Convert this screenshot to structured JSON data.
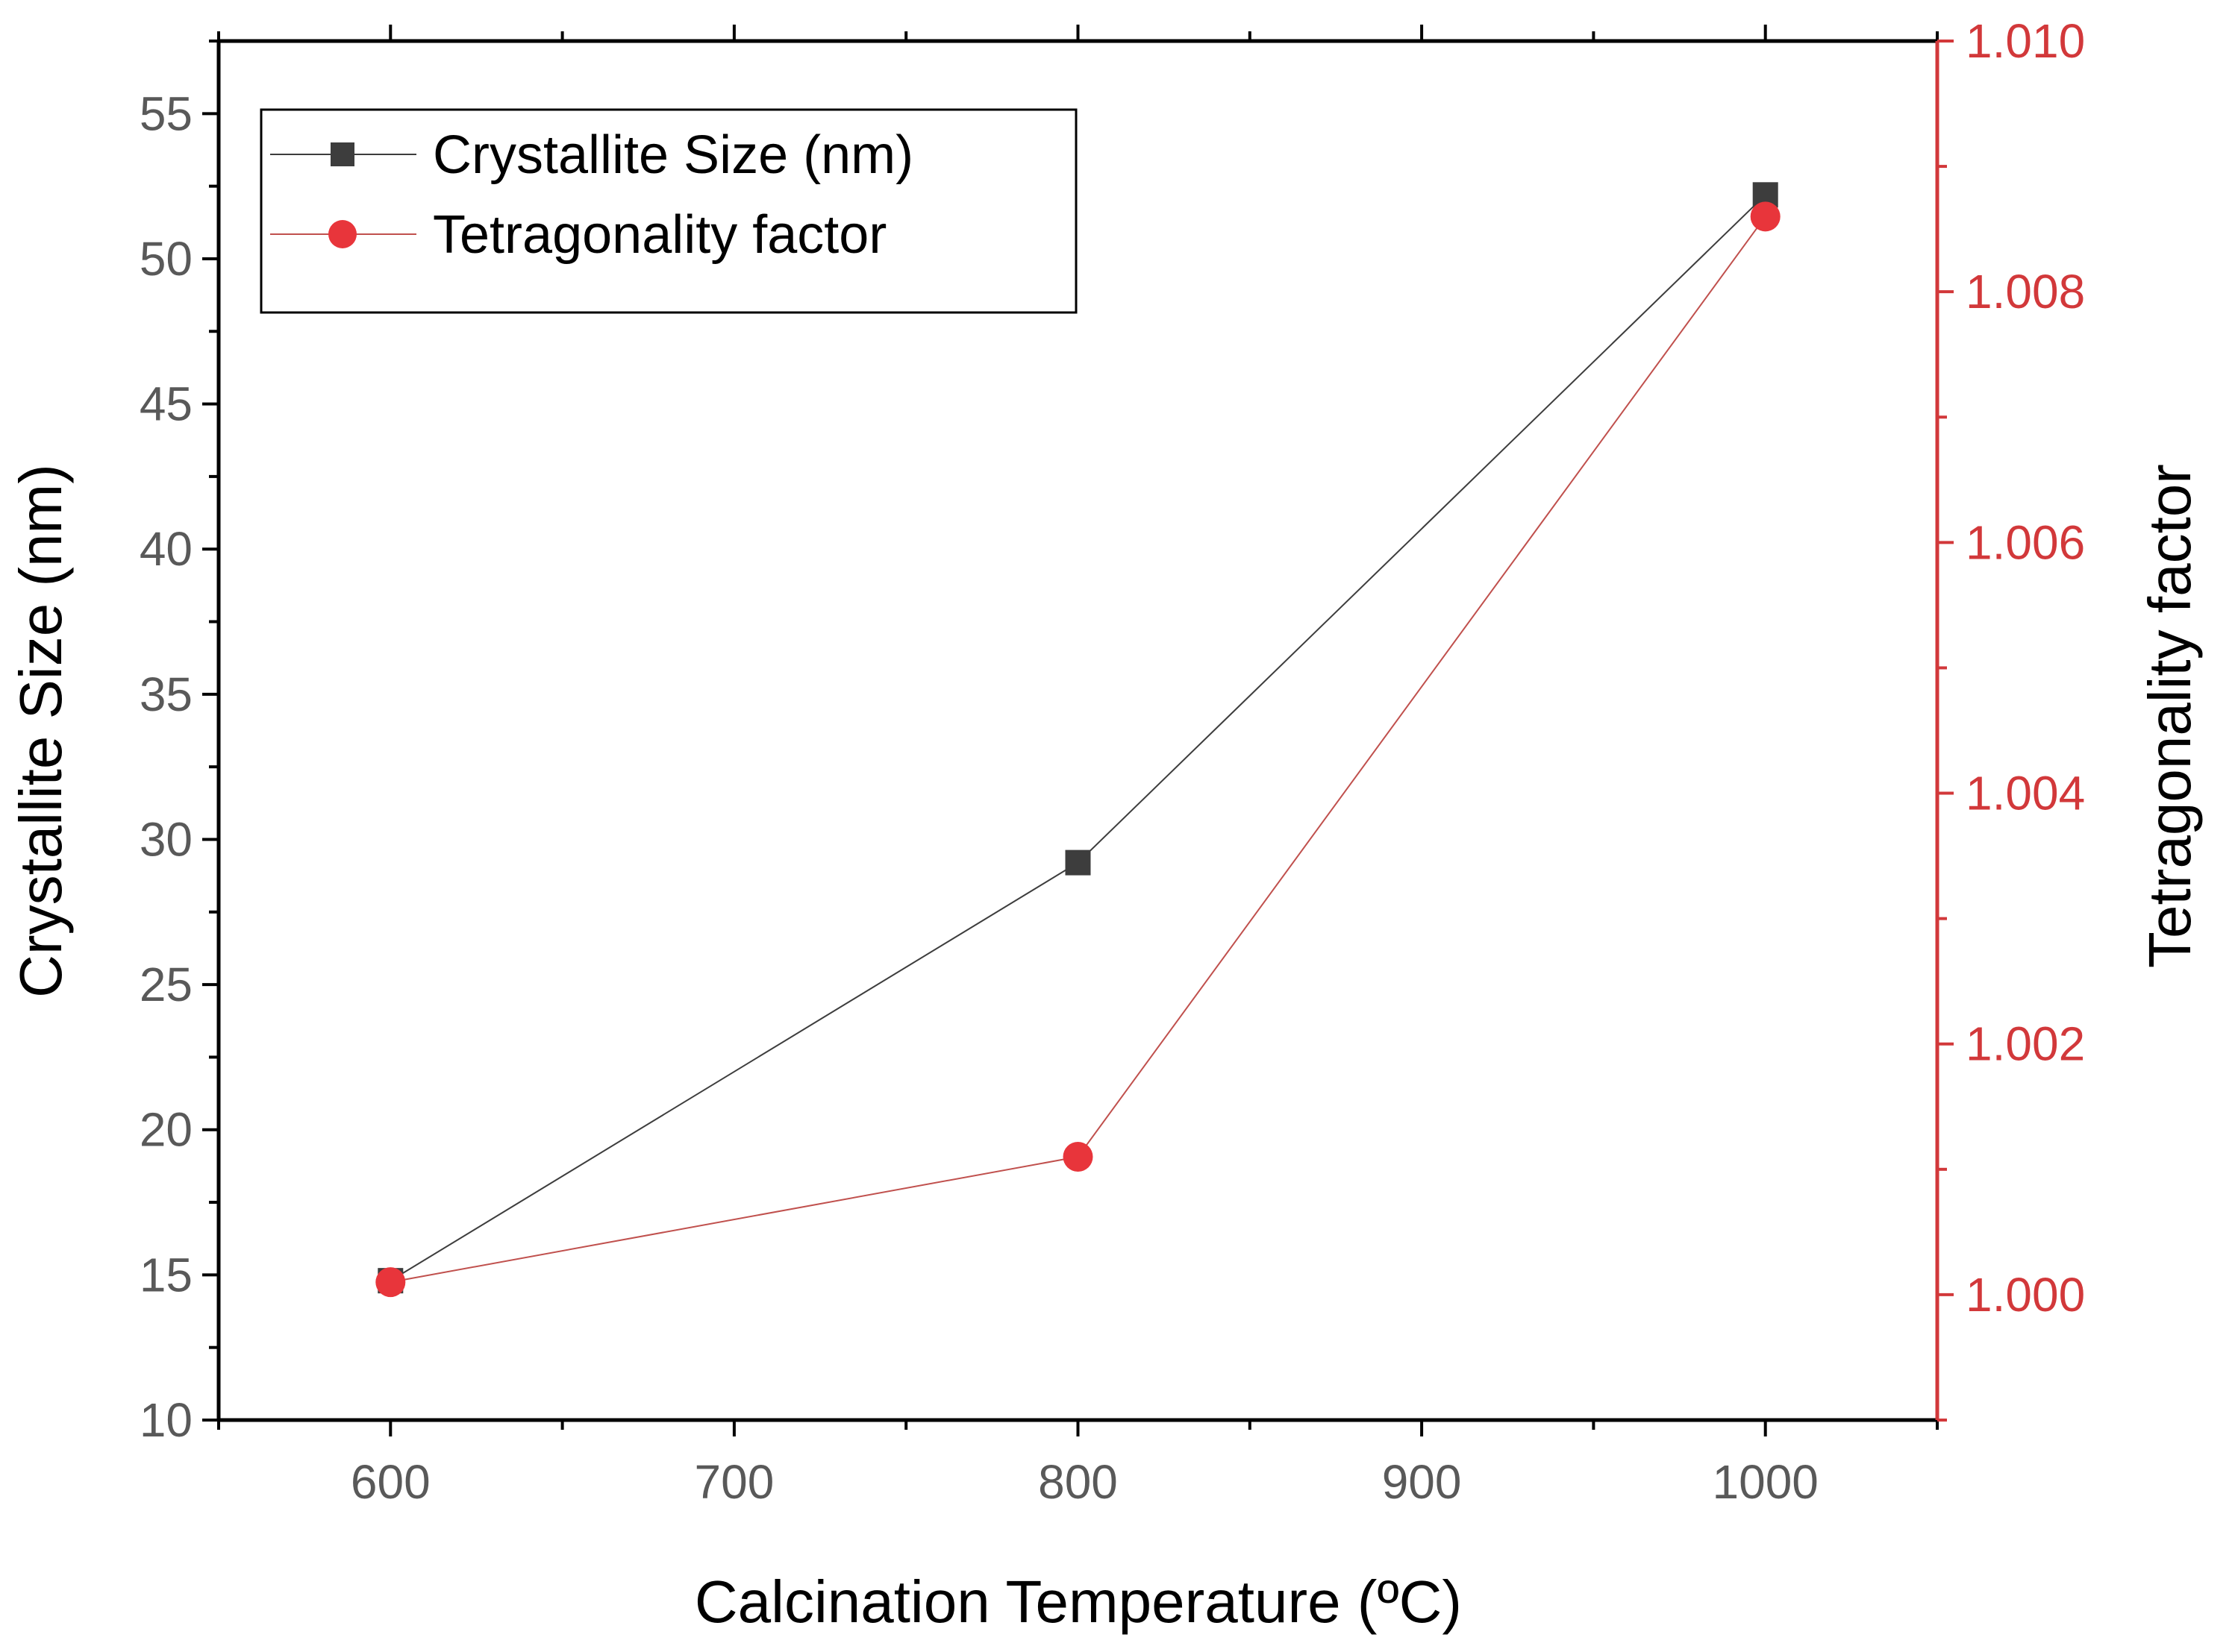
{
  "chart_data": {
    "type": "line",
    "xlabel": "Calcination Temperature (ºC)",
    "x": [
      600,
      800,
      1000
    ],
    "xlim": [
      550,
      1050
    ],
    "xticks": [
      600,
      700,
      800,
      900,
      1000
    ],
    "left_axis": {
      "label": "Crystallite Size (nm)",
      "ylim": [
        10,
        57.5
      ],
      "ticks": [
        10,
        15,
        20,
        25,
        30,
        35,
        40,
        45,
        50,
        55
      ]
    },
    "right_axis": {
      "label": "Tetragonality factor",
      "ylim": [
        0.999,
        1.01
      ],
      "ticks": [
        "1.000",
        "1.002",
        "1.004",
        "1.006",
        "1.008",
        "1.010"
      ],
      "color": "#d2383a"
    },
    "series": [
      {
        "name": "Crystallite Size (nm)",
        "axis": "left",
        "marker": "square",
        "color": "#3d3d3d",
        "values": [
          14.8,
          29.2,
          52.2
        ]
      },
      {
        "name": "Tetragonality factor",
        "axis": "right",
        "marker": "circle",
        "color": "#e8353b",
        "values": [
          1.0001,
          1.0011,
          1.0086
        ]
      }
    ],
    "legend": {
      "position": "top-left"
    },
    "grid": false
  }
}
